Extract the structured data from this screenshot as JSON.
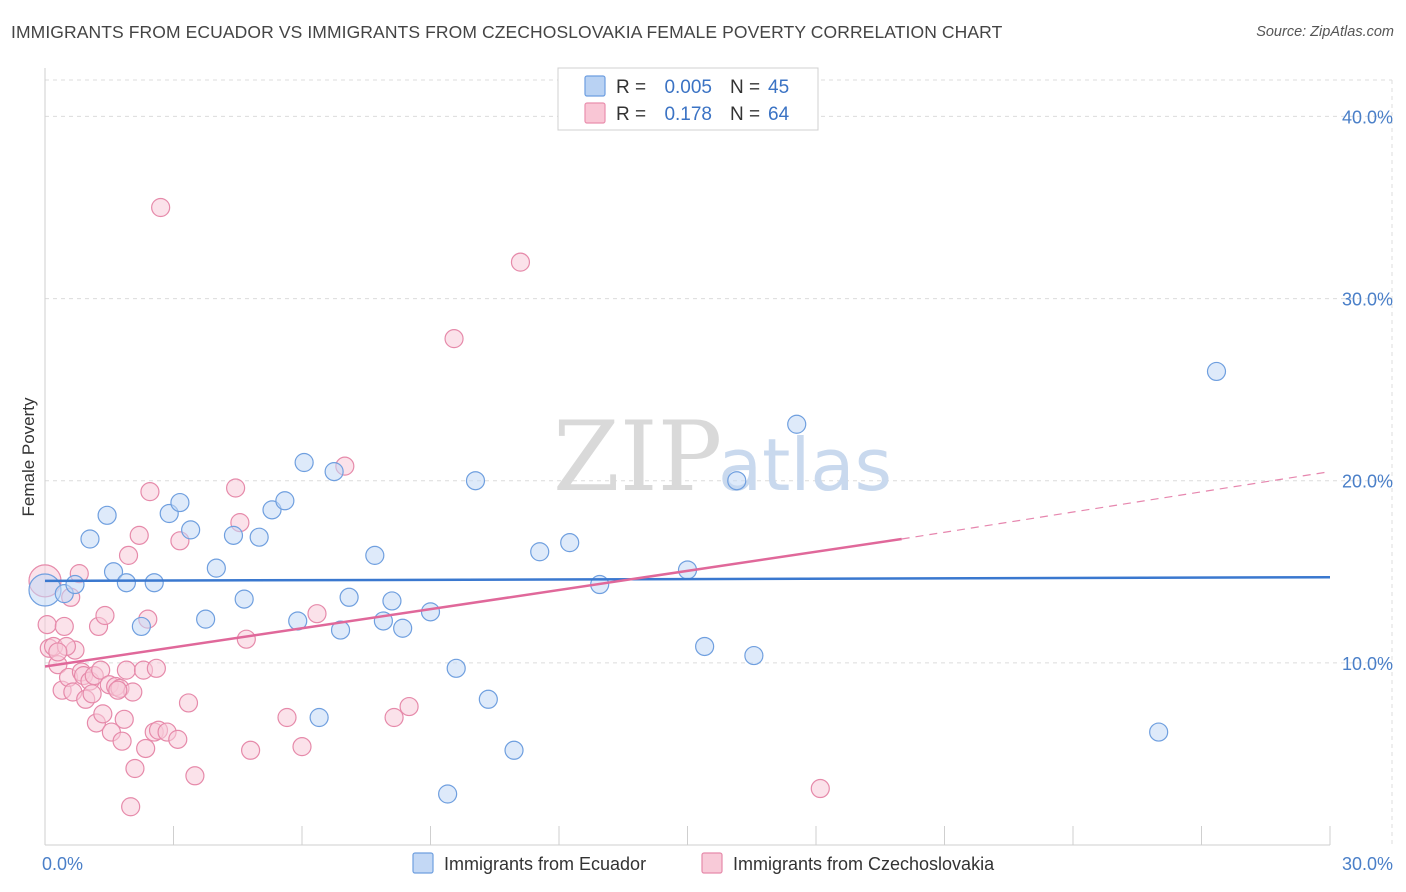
{
  "title": "IMMIGRANTS FROM ECUADOR VS IMMIGRANTS FROM CZECHOSLOVAKIA FEMALE POVERTY CORRELATION CHART",
  "source": "Source: ZipAtlas.com",
  "watermark": {
    "zip": "ZIP",
    "atlas": "atlas"
  },
  "legend": {
    "r_label": "R =",
    "n_label": "N =",
    "rows": [
      {
        "r": "0.005",
        "n": "45",
        "fill": "#b9d2f3",
        "stroke": "#6d9ee0"
      },
      {
        "r": "0.178",
        "n": "64",
        "fill": "#f9c6d5",
        "stroke": "#e98fae"
      }
    ]
  },
  "colors": {
    "ecuador_fill": "#c3d8f5",
    "ecuador_stroke": "#6f9fdf",
    "ecuador_line": "#3a78cf",
    "czech_fill": "#f8cad8",
    "czech_stroke": "#e68aaa",
    "czech_line": "#e0689a",
    "grid": "#dcdcdc",
    "tick_label": "#4a7fc8"
  },
  "chart_data": {
    "type": "scatter",
    "title": "IMMIGRANTS FROM ECUADOR VS IMMIGRANTS FROM CZECHOSLOVAKIA FEMALE POVERTY CORRELATION CHART",
    "xlabel": "",
    "ylabel": "Female Poverty",
    "xlim": [
      0,
      30
    ],
    "ylim": [
      0,
      42
    ],
    "x_tick_labels": [
      "0.0%",
      "30.0%"
    ],
    "y_ticks": [
      10,
      20,
      30,
      40
    ],
    "y_tick_labels": [
      "10.0%",
      "20.0%",
      "30.0%",
      "40.0%"
    ],
    "grid": true,
    "legend_position": "top-center",
    "series": [
      {
        "name": "Immigrants from Ecuador",
        "r": 0.005,
        "n": 45,
        "trend": {
          "x": [
            0,
            30
          ],
          "y": [
            14.5,
            14.7
          ]
        },
        "points": [
          [
            0.0,
            14.0
          ],
          [
            0.45,
            13.8
          ],
          [
            0.7,
            14.3
          ],
          [
            1.05,
            16.8
          ],
          [
            1.45,
            18.1
          ],
          [
            1.6,
            15.0
          ],
          [
            1.9,
            14.4
          ],
          [
            2.25,
            12.0
          ],
          [
            2.55,
            14.4
          ],
          [
            2.9,
            18.2
          ],
          [
            3.15,
            18.8
          ],
          [
            3.4,
            17.3
          ],
          [
            3.75,
            12.4
          ],
          [
            4.0,
            15.2
          ],
          [
            4.4,
            17.0
          ],
          [
            4.65,
            13.5
          ],
          [
            5.0,
            16.9
          ],
          [
            5.3,
            18.4
          ],
          [
            5.6,
            18.9
          ],
          [
            5.9,
            12.3
          ],
          [
            6.05,
            21.0
          ],
          [
            6.4,
            7.0
          ],
          [
            6.75,
            20.5
          ],
          [
            6.9,
            11.8
          ],
          [
            7.1,
            13.6
          ],
          [
            7.7,
            15.9
          ],
          [
            7.9,
            12.3
          ],
          [
            8.1,
            13.4
          ],
          [
            8.35,
            11.9
          ],
          [
            9.0,
            12.8
          ],
          [
            9.4,
            2.8
          ],
          [
            9.6,
            9.7
          ],
          [
            10.05,
            20.0
          ],
          [
            10.35,
            8.0
          ],
          [
            10.95,
            5.2
          ],
          [
            11.55,
            16.1
          ],
          [
            12.25,
            16.6
          ],
          [
            12.95,
            14.3
          ],
          [
            15.0,
            15.1
          ],
          [
            15.4,
            10.9
          ],
          [
            16.15,
            20.0
          ],
          [
            16.55,
            10.4
          ],
          [
            17.55,
            23.1
          ],
          [
            26.0,
            6.2
          ],
          [
            27.35,
            26.0
          ]
        ]
      },
      {
        "name": "Immigrants from Czechoslovakia",
        "r": 0.178,
        "n": 64,
        "trend": {
          "x": [
            0,
            20
          ],
          "y": [
            9.8,
            16.8
          ]
        },
        "trend_extension": {
          "x": [
            20,
            30
          ],
          "y": [
            16.8,
            20.5
          ]
        },
        "points": [
          [
            0.0,
            14.5
          ],
          [
            0.05,
            12.1
          ],
          [
            0.1,
            10.8
          ],
          [
            0.2,
            10.9
          ],
          [
            0.3,
            9.9
          ],
          [
            0.4,
            8.5
          ],
          [
            0.45,
            12.0
          ],
          [
            0.55,
            9.2
          ],
          [
            0.6,
            13.6
          ],
          [
            0.65,
            8.4
          ],
          [
            0.7,
            10.7
          ],
          [
            0.8,
            14.9
          ],
          [
            0.85,
            9.5
          ],
          [
            0.9,
            9.3
          ],
          [
            0.95,
            8.0
          ],
          [
            1.05,
            9.0
          ],
          [
            1.1,
            8.3
          ],
          [
            1.15,
            9.3
          ],
          [
            1.2,
            6.7
          ],
          [
            1.25,
            12.0
          ],
          [
            1.3,
            9.6
          ],
          [
            1.35,
            7.2
          ],
          [
            1.4,
            12.6
          ],
          [
            1.5,
            8.8
          ],
          [
            1.55,
            6.2
          ],
          [
            1.65,
            8.7
          ],
          [
            1.75,
            8.6
          ],
          [
            1.8,
            5.7
          ],
          [
            1.85,
            6.9
          ],
          [
            1.9,
            9.6
          ],
          [
            1.95,
            15.9
          ],
          [
            2.0,
            2.1
          ],
          [
            2.05,
            8.4
          ],
          [
            2.1,
            4.2
          ],
          [
            2.2,
            17.0
          ],
          [
            2.3,
            9.6
          ],
          [
            2.35,
            5.3
          ],
          [
            2.4,
            12.4
          ],
          [
            2.45,
            19.4
          ],
          [
            2.55,
            6.2
          ],
          [
            2.6,
            9.7
          ],
          [
            2.65,
            6.3
          ],
          [
            2.7,
            35.0
          ],
          [
            2.85,
            6.2
          ],
          [
            3.1,
            5.8
          ],
          [
            3.15,
            16.7
          ],
          [
            3.35,
            7.8
          ],
          [
            3.5,
            3.8
          ],
          [
            4.45,
            19.6
          ],
          [
            4.55,
            17.7
          ],
          [
            4.7,
            11.3
          ],
          [
            4.8,
            5.2
          ],
          [
            5.65,
            7.0
          ],
          [
            6.0,
            5.4
          ],
          [
            6.35,
            12.7
          ],
          [
            7.0,
            20.8
          ],
          [
            8.15,
            7.0
          ],
          [
            8.5,
            7.6
          ],
          [
            9.55,
            27.8
          ],
          [
            11.1,
            32.0
          ],
          [
            18.1,
            3.1
          ],
          [
            0.5,
            10.9
          ],
          [
            0.3,
            10.6
          ],
          [
            1.7,
            8.5
          ]
        ]
      }
    ]
  },
  "bottom_legend": [
    {
      "label": "Immigrants from Ecuador",
      "fill": "#c3d8f5",
      "stroke": "#6f9fdf"
    },
    {
      "label": "Immigrants from Czechoslovakia",
      "fill": "#f8cad8",
      "stroke": "#e68aaa"
    }
  ]
}
